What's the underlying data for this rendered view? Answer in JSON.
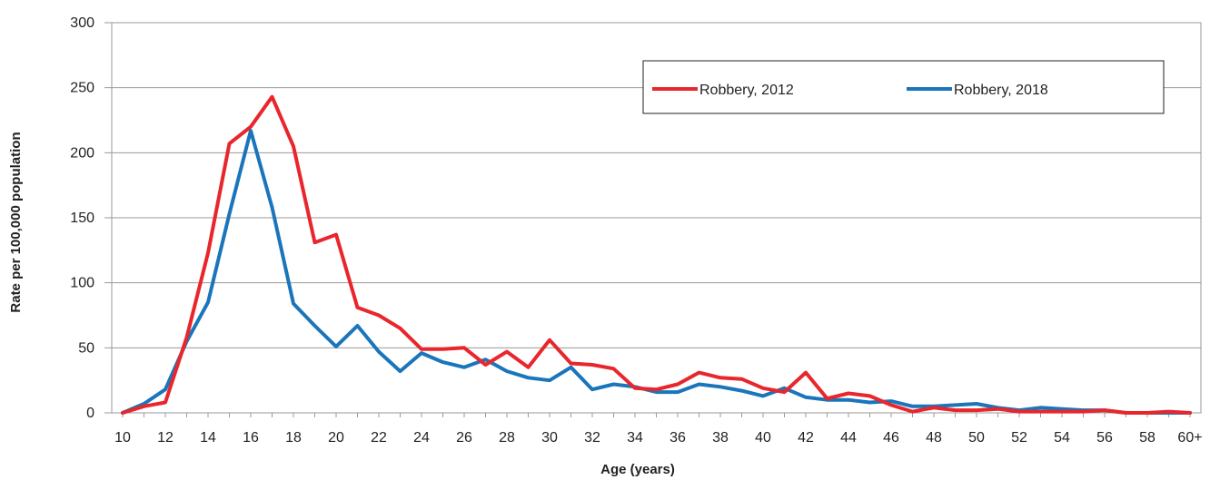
{
  "chart_data": {
    "type": "line",
    "title": "",
    "xlabel": "Age (years)",
    "ylabel": "Rate per 100,000 population",
    "categories": [
      "10",
      "11",
      "12",
      "13",
      "14",
      "15",
      "16",
      "17",
      "18",
      "19",
      "20",
      "21",
      "22",
      "23",
      "24",
      "25",
      "26",
      "27",
      "28",
      "29",
      "30",
      "31",
      "32",
      "33",
      "34",
      "35",
      "36",
      "37",
      "38",
      "39",
      "40",
      "41",
      "42",
      "43",
      "44",
      "45",
      "46",
      "47",
      "48",
      "49",
      "50",
      "51",
      "52",
      "53",
      "54",
      "55",
      "56",
      "57",
      "58",
      "59",
      "60+"
    ],
    "x_tick_labels": [
      "10",
      "12",
      "14",
      "16",
      "18",
      "20",
      "22",
      "24",
      "26",
      "28",
      "30",
      "32",
      "34",
      "36",
      "38",
      "40",
      "42",
      "44",
      "46",
      "48",
      "50",
      "52",
      "54",
      "56",
      "58",
      "60+"
    ],
    "y_ticks": [
      0,
      50,
      100,
      150,
      200,
      250,
      300
    ],
    "ylim": [
      0,
      300
    ],
    "grid": "horizontal",
    "legend_position": "top-right",
    "series": [
      {
        "name": "Robbery, 2012",
        "color": "#e8262c",
        "values": [
          0,
          5,
          8,
          58,
          123,
          207,
          220,
          243,
          205,
          131,
          137,
          81,
          75,
          65,
          49,
          49,
          50,
          37,
          47,
          35,
          56,
          38,
          37,
          34,
          19,
          18,
          22,
          31,
          27,
          26,
          19,
          16,
          31,
          11,
          15,
          13,
          6,
          1,
          4,
          2,
          2,
          3,
          1,
          1,
          1,
          1,
          2,
          0,
          0,
          1,
          0
        ]
      },
      {
        "name": "Robbery, 2018",
        "color": "#1a75bb",
        "values": [
          0,
          7,
          18,
          55,
          85,
          153,
          217,
          158,
          84,
          67,
          51,
          67,
          47,
          32,
          46,
          39,
          35,
          41,
          32,
          27,
          25,
          35,
          18,
          22,
          20,
          16,
          16,
          22,
          20,
          17,
          13,
          19,
          12,
          10,
          10,
          8,
          9,
          5,
          5,
          6,
          7,
          4,
          2,
          4,
          3,
          2,
          2,
          0,
          0,
          0,
          0
        ]
      }
    ]
  }
}
